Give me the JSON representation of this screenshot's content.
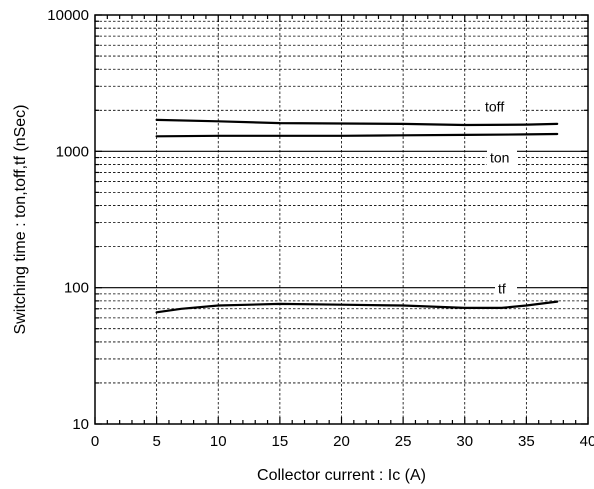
{
  "chart_data": {
    "type": "line",
    "xlabel": "Collector current : Ic (A)",
    "ylabel": "Switching time : ton,toff,tf (nSec)",
    "xlim": [
      0,
      40
    ],
    "ylim": [
      10,
      10000
    ],
    "yscale": "log",
    "grid": true,
    "x_ticks": [
      0,
      5,
      10,
      15,
      20,
      25,
      30,
      35,
      40
    ],
    "x_tick_labels": [
      "0",
      "5",
      "10",
      "15",
      "20",
      "25",
      "30",
      "35",
      "40"
    ],
    "y_ticks": [
      10,
      100,
      1000,
      10000
    ],
    "y_tick_labels": [
      "10",
      "100",
      "1000",
      "10000"
    ],
    "series": [
      {
        "name": "toff",
        "x": [
          5,
          10,
          15,
          20,
          25,
          30,
          35,
          37.5
        ],
        "y": [
          1700,
          1660,
          1610,
          1600,
          1590,
          1560,
          1570,
          1590
        ]
      },
      {
        "name": "ton",
        "x": [
          5,
          10,
          15,
          20,
          25,
          30,
          35,
          37.5
        ],
        "y": [
          1290,
          1300,
          1300,
          1300,
          1310,
          1320,
          1330,
          1340
        ]
      },
      {
        "name": "tf",
        "x": [
          5,
          7,
          10,
          15,
          20,
          25,
          30,
          33,
          35,
          37.5
        ],
        "y": [
          66,
          70,
          74,
          76,
          75,
          74,
          71,
          71,
          74,
          79
        ]
      }
    ]
  }
}
